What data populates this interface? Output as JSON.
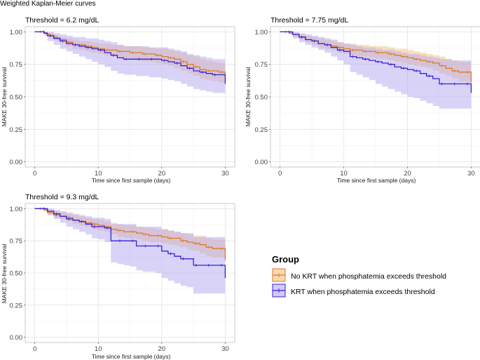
{
  "figure_title": "Weighted Kaplan-Meier curves",
  "legend": {
    "title": "Group",
    "entries": [
      {
        "label": "No KRT when phosphatemia exceeds threshold",
        "color": "#e07b24",
        "fill": "#f5c98f"
      },
      {
        "label": "KRT when phosphatemia exceeds threshold",
        "color": "#3a1fd6",
        "fill": "#b4a8f2"
      }
    ]
  },
  "chart_data": [
    {
      "type": "line",
      "title": "Threshold = 6.2 mg/dL",
      "xlabel": "Time since first sample (days)",
      "ylabel": "MAKE 30-free survival",
      "xlim": [
        -1.5,
        31.5
      ],
      "ylim": [
        -0.04,
        1.04
      ],
      "xticks": [
        "0",
        "10",
        "20",
        "30"
      ],
      "yticks": [
        "0.00",
        "0.25",
        "0.50",
        "0.75",
        "1.00"
      ],
      "grid": true,
      "series": [
        {
          "name": "No KRT when phosphatemia exceeds threshold",
          "t": [
            0,
            0.5,
            1,
            1.5,
            2,
            2.5,
            3,
            3.5,
            4,
            5,
            6,
            7,
            8,
            9,
            10,
            11,
            12,
            13,
            14,
            15,
            16,
            17,
            18,
            19,
            20,
            21,
            22,
            23,
            24,
            25,
            26,
            27,
            28,
            29,
            30
          ],
          "surv": [
            1,
            1,
            1,
            0.99,
            0.98,
            0.97,
            0.96,
            0.95,
            0.94,
            0.92,
            0.9,
            0.9,
            0.89,
            0.88,
            0.87,
            0.86,
            0.86,
            0.85,
            0.85,
            0.84,
            0.84,
            0.83,
            0.83,
            0.82,
            0.81,
            0.8,
            0.79,
            0.77,
            0.75,
            0.73,
            0.71,
            0.7,
            0.7,
            0.69,
            0.66
          ],
          "lower": [
            1,
            1,
            1,
            0.98,
            0.97,
            0.95,
            0.94,
            0.93,
            0.91,
            0.89,
            0.87,
            0.86,
            0.85,
            0.84,
            0.83,
            0.82,
            0.81,
            0.8,
            0.8,
            0.79,
            0.78,
            0.77,
            0.77,
            0.76,
            0.75,
            0.74,
            0.72,
            0.7,
            0.68,
            0.66,
            0.64,
            0.63,
            0.62,
            0.61,
            0.58
          ],
          "upper": [
            1,
            1,
            1,
            1,
            0.99,
            0.99,
            0.98,
            0.97,
            0.96,
            0.95,
            0.94,
            0.93,
            0.93,
            0.92,
            0.91,
            0.91,
            0.9,
            0.9,
            0.89,
            0.89,
            0.89,
            0.88,
            0.88,
            0.87,
            0.87,
            0.86,
            0.85,
            0.84,
            0.82,
            0.81,
            0.79,
            0.78,
            0.77,
            0.76,
            0.74
          ]
        },
        {
          "name": "KRT when phosphatemia exceeds threshold",
          "t": [
            0,
            1,
            1.5,
            2,
            3,
            4,
            5,
            6,
            7,
            8,
            9,
            10,
            11,
            12,
            13,
            14,
            15,
            16,
            17,
            18,
            19,
            20,
            21,
            22,
            23,
            24,
            25,
            26,
            27,
            28,
            29,
            30
          ],
          "surv": [
            1,
            1,
            0.99,
            0.97,
            0.95,
            0.93,
            0.91,
            0.9,
            0.89,
            0.88,
            0.87,
            0.86,
            0.84,
            0.82,
            0.8,
            0.79,
            0.79,
            0.79,
            0.79,
            0.79,
            0.79,
            0.78,
            0.77,
            0.76,
            0.74,
            0.72,
            0.7,
            0.69,
            0.68,
            0.67,
            0.67,
            0.6
          ],
          "lower": [
            1,
            1,
            0.97,
            0.93,
            0.9,
            0.87,
            0.85,
            0.83,
            0.81,
            0.79,
            0.77,
            0.75,
            0.73,
            0.7,
            0.68,
            0.67,
            0.67,
            0.66,
            0.66,
            0.65,
            0.65,
            0.64,
            0.63,
            0.62,
            0.6,
            0.58,
            0.56,
            0.55,
            0.54,
            0.53,
            0.53,
            0.47
          ],
          "upper": [
            1,
            1,
            1,
            1,
            0.99,
            0.98,
            0.97,
            0.96,
            0.96,
            0.95,
            0.95,
            0.94,
            0.93,
            0.92,
            0.9,
            0.89,
            0.89,
            0.89,
            0.89,
            0.88,
            0.88,
            0.88,
            0.87,
            0.86,
            0.85,
            0.83,
            0.82,
            0.81,
            0.8,
            0.79,
            0.79,
            0.77
          ]
        }
      ]
    },
    {
      "type": "line",
      "title": "Threshold = 7.75 mg/dL",
      "xlabel": "Time since first sample (days)",
      "ylabel": "MAKE 30-free survival",
      "xlim": [
        -1.5,
        31.5
      ],
      "ylim": [
        -0.04,
        1.04
      ],
      "xticks": [
        "0",
        "10",
        "20",
        "30"
      ],
      "yticks": [
        "0.00",
        "0.25",
        "0.50",
        "0.75",
        "1.00"
      ],
      "grid": true,
      "series": [
        {
          "name": "No KRT when phosphatemia exceeds threshold",
          "t": [
            0,
            0.5,
            1,
            1.5,
            2,
            3,
            4,
            5,
            6,
            7,
            8,
            9,
            10,
            11,
            12,
            13,
            14,
            15,
            16,
            17,
            18,
            19,
            20,
            21,
            22,
            23,
            24,
            25,
            26,
            27,
            28,
            29,
            30
          ],
          "surv": [
            1,
            1,
            1,
            0.99,
            0.98,
            0.96,
            0.94,
            0.93,
            0.91,
            0.9,
            0.89,
            0.88,
            0.87,
            0.86,
            0.86,
            0.85,
            0.85,
            0.84,
            0.84,
            0.83,
            0.82,
            0.81,
            0.8,
            0.79,
            0.78,
            0.77,
            0.76,
            0.74,
            0.72,
            0.7,
            0.69,
            0.69,
            0.61
          ],
          "lower": [
            1,
            1,
            1,
            0.98,
            0.96,
            0.94,
            0.92,
            0.9,
            0.88,
            0.87,
            0.86,
            0.84,
            0.83,
            0.82,
            0.81,
            0.81,
            0.8,
            0.79,
            0.79,
            0.78,
            0.77,
            0.76,
            0.75,
            0.74,
            0.73,
            0.72,
            0.7,
            0.68,
            0.66,
            0.64,
            0.62,
            0.62,
            0.54
          ],
          "upper": [
            1,
            1,
            1,
            1,
            0.99,
            0.98,
            0.97,
            0.96,
            0.95,
            0.94,
            0.93,
            0.92,
            0.91,
            0.91,
            0.9,
            0.9,
            0.89,
            0.89,
            0.89,
            0.88,
            0.87,
            0.87,
            0.86,
            0.85,
            0.84,
            0.83,
            0.82,
            0.81,
            0.79,
            0.78,
            0.77,
            0.77,
            0.76
          ]
        },
        {
          "name": "KRT when phosphatemia exceeds threshold",
          "t": [
            0,
            1,
            2,
            3,
            4,
            5,
            6,
            7,
            8,
            9,
            10,
            11,
            12,
            13,
            14,
            15,
            16,
            17,
            18,
            19,
            20,
            21,
            22,
            23,
            24,
            25,
            26,
            27,
            28,
            29,
            30
          ],
          "surv": [
            1,
            1,
            0.98,
            0.96,
            0.94,
            0.93,
            0.91,
            0.9,
            0.88,
            0.86,
            0.85,
            0.81,
            0.8,
            0.79,
            0.78,
            0.77,
            0.76,
            0.75,
            0.73,
            0.72,
            0.71,
            0.7,
            0.68,
            0.66,
            0.64,
            0.6,
            0.6,
            0.6,
            0.6,
            0.6,
            0.53
          ],
          "lower": [
            1,
            1,
            0.95,
            0.92,
            0.9,
            0.88,
            0.86,
            0.84,
            0.81,
            0.78,
            0.75,
            0.69,
            0.67,
            0.65,
            0.63,
            0.6,
            0.58,
            0.56,
            0.54,
            0.52,
            0.5,
            0.49,
            0.47,
            0.45,
            0.43,
            0.41,
            0.41,
            0.41,
            0.41,
            0.41,
            0.36
          ],
          "upper": [
            1,
            1,
            1,
            0.99,
            0.98,
            0.97,
            0.96,
            0.95,
            0.94,
            0.92,
            0.91,
            0.9,
            0.89,
            0.88,
            0.88,
            0.87,
            0.86,
            0.86,
            0.85,
            0.84,
            0.83,
            0.83,
            0.82,
            0.81,
            0.8,
            0.79,
            0.79,
            0.78,
            0.78,
            0.78,
            0.72
          ]
        }
      ]
    },
    {
      "type": "line",
      "title": "Threshold = 9.3 mg/dL",
      "xlabel": "Time since first sample (days)",
      "ylabel": "MAKE 30-free survival",
      "xlim": [
        -1.5,
        31.5
      ],
      "ylim": [
        -0.04,
        1.04
      ],
      "xticks": [
        "0",
        "10",
        "20",
        "30"
      ],
      "yticks": [
        "0.00",
        "0.25",
        "0.50",
        "0.75",
        "1.00"
      ],
      "grid": true,
      "series": [
        {
          "name": "No KRT when phosphatemia exceeds threshold",
          "t": [
            0,
            0.5,
            1,
            1.5,
            2,
            3,
            4,
            5,
            6,
            7,
            8,
            9,
            10,
            11,
            12,
            13,
            14,
            15,
            16,
            17,
            18,
            19,
            20,
            21,
            22,
            23,
            24,
            25,
            26,
            27,
            28,
            29,
            30
          ],
          "surv": [
            1,
            1,
            1,
            0.99,
            0.97,
            0.95,
            0.94,
            0.93,
            0.91,
            0.9,
            0.89,
            0.88,
            0.87,
            0.86,
            0.84,
            0.83,
            0.82,
            0.82,
            0.81,
            0.8,
            0.79,
            0.79,
            0.78,
            0.77,
            0.77,
            0.75,
            0.74,
            0.73,
            0.72,
            0.7,
            0.69,
            0.69,
            0.6
          ],
          "lower": [
            1,
            1,
            1,
            0.98,
            0.95,
            0.93,
            0.92,
            0.9,
            0.88,
            0.87,
            0.86,
            0.84,
            0.83,
            0.82,
            0.8,
            0.78,
            0.77,
            0.77,
            0.76,
            0.75,
            0.74,
            0.74,
            0.73,
            0.72,
            0.71,
            0.7,
            0.68,
            0.67,
            0.65,
            0.63,
            0.62,
            0.62,
            0.53
          ],
          "upper": [
            1,
            1,
            1,
            1,
            0.99,
            0.98,
            0.97,
            0.96,
            0.95,
            0.94,
            0.93,
            0.92,
            0.91,
            0.9,
            0.89,
            0.88,
            0.87,
            0.87,
            0.86,
            0.85,
            0.85,
            0.84,
            0.84,
            0.83,
            0.82,
            0.81,
            0.8,
            0.79,
            0.79,
            0.77,
            0.76,
            0.76,
            0.68
          ]
        },
        {
          "name": "KRT when phosphatemia exceeds threshold",
          "t": [
            0,
            1,
            2,
            3,
            4,
            5,
            6,
            7,
            8,
            9,
            10,
            11,
            12,
            13,
            14,
            15,
            16,
            17,
            18,
            19,
            20,
            21,
            22,
            23,
            24,
            25,
            26,
            27,
            28,
            29,
            30
          ],
          "surv": [
            1,
            1,
            0.98,
            0.96,
            0.94,
            0.92,
            0.91,
            0.9,
            0.88,
            0.86,
            0.86,
            0.85,
            0.75,
            0.75,
            0.75,
            0.75,
            0.71,
            0.71,
            0.71,
            0.71,
            0.67,
            0.65,
            0.63,
            0.61,
            0.61,
            0.56,
            0.56,
            0.56,
            0.56,
            0.56,
            0.46
          ],
          "lower": [
            1,
            1,
            0.95,
            0.92,
            0.89,
            0.86,
            0.84,
            0.82,
            0.8,
            0.77,
            0.76,
            0.74,
            0.58,
            0.57,
            0.56,
            0.55,
            0.52,
            0.51,
            0.51,
            0.5,
            0.46,
            0.44,
            0.42,
            0.4,
            0.39,
            0.34,
            0.34,
            0.34,
            0.34,
            0.34,
            0.33
          ],
          "upper": [
            1,
            1,
            1,
            0.99,
            0.98,
            0.97,
            0.96,
            0.95,
            0.94,
            0.93,
            0.93,
            0.92,
            0.88,
            0.88,
            0.88,
            0.88,
            0.86,
            0.86,
            0.86,
            0.86,
            0.84,
            0.83,
            0.82,
            0.81,
            0.81,
            0.78,
            0.78,
            0.78,
            0.78,
            0.78,
            0.7
          ]
        }
      ]
    }
  ]
}
